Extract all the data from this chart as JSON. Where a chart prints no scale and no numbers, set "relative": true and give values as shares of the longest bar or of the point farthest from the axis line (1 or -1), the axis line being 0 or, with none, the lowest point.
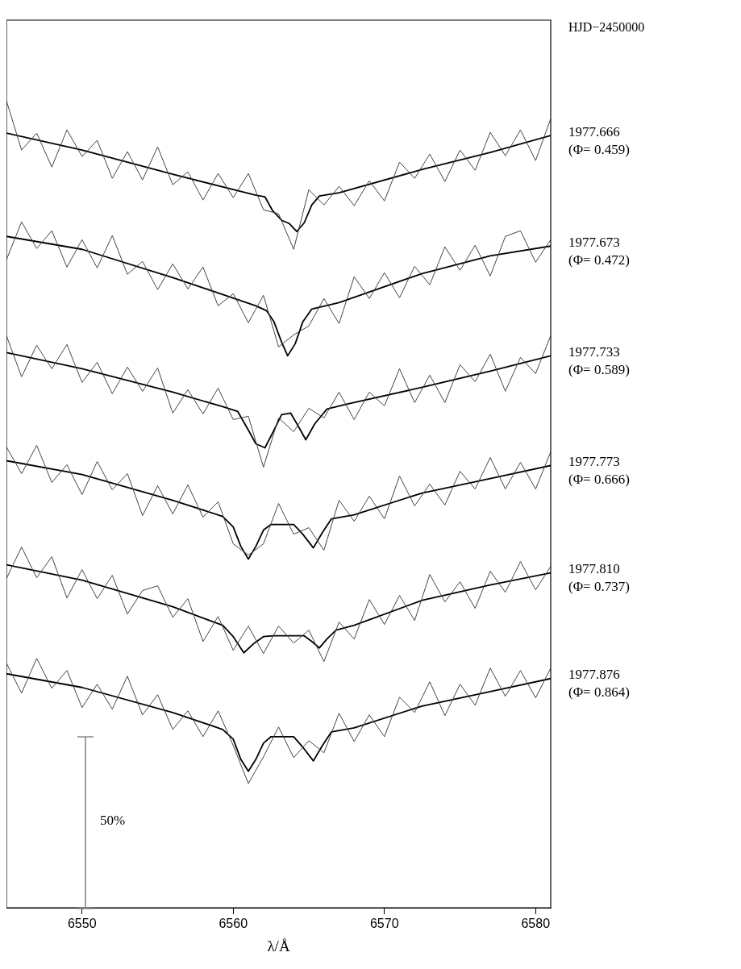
{
  "chart_data": {
    "type": "line",
    "relative": true,
    "xlabel": "λ/Å",
    "annotations": [
      "HJD−2450000",
      "50%"
    ],
    "xlim": [
      6545,
      6581
    ],
    "xticks": [
      6550,
      6560,
      6570,
      6580
    ],
    "grid": false,
    "legend": false,
    "marker": "none",
    "x": [
      6545,
      6546,
      6547,
      6548,
      6549,
      6550,
      6551,
      6552,
      6553,
      6554,
      6555,
      6556,
      6557,
      6558,
      6559,
      6560,
      6561,
      6562,
      6563,
      6564,
      6565,
      6566,
      6567,
      6568,
      6569,
      6570,
      6571,
      6572,
      6573,
      6574,
      6575,
      6576,
      6577,
      6578,
      6579,
      6580,
      6581
    ],
    "series": [
      {
        "color": "#444444",
        "values": [
          1.0,
          0.939,
          0.96,
          0.918,
          0.964,
          0.931,
          0.951,
          0.904,
          0.937,
          0.902,
          0.943,
          0.896,
          0.912,
          0.877,
          0.91,
          0.88,
          0.91,
          0.865,
          0.86,
          0.816,
          0.89,
          0.871,
          0.894,
          0.87,
          0.901,
          0.876,
          0.924,
          0.904,
          0.934,
          0.9,
          0.939,
          0.914,
          0.961,
          0.932,
          0.964,
          0.926,
          0.978
        ]
      },
      {
        "name": "1977.666 (Φ= 0.459)",
        "color": "#000000",
        "x": [
          6545,
          6550,
          6556,
          6561.5,
          6562.1,
          6562.6,
          6563.2,
          6563.7,
          6564.2,
          6564.7,
          6565.2,
          6565.7,
          6567,
          6572.5,
          6577,
          6581
        ],
        "values": [
          0.96,
          0.939,
          0.909,
          0.883,
          0.881,
          0.864,
          0.852,
          0.848,
          0.838,
          0.849,
          0.871,
          0.882,
          0.886,
          0.915,
          0.936,
          0.957
        ]
      },
      {
        "color": "#444444",
        "values": [
          0.803,
          0.85,
          0.817,
          0.839,
          0.794,
          0.828,
          0.793,
          0.833,
          0.785,
          0.801,
          0.766,
          0.798,
          0.767,
          0.794,
          0.746,
          0.761,
          0.725,
          0.759,
          0.695,
          0.71,
          0.721,
          0.755,
          0.724,
          0.782,
          0.755,
          0.787,
          0.756,
          0.795,
          0.772,
          0.819,
          0.79,
          0.821,
          0.783,
          0.832,
          0.839,
          0.8,
          0.828
        ]
      },
      {
        "name": "1977.673 (Φ= 0.472)",
        "color": "#000000",
        "x": [
          6545,
          6550,
          6556,
          6561.5,
          6562.2,
          6562.7,
          6563.2,
          6563.6,
          6564.1,
          6564.6,
          6565.2,
          6567,
          6572.5,
          6577,
          6581
        ],
        "values": [
          0.832,
          0.816,
          0.781,
          0.746,
          0.74,
          0.726,
          0.701,
          0.684,
          0.699,
          0.726,
          0.742,
          0.75,
          0.786,
          0.808,
          0.82
        ]
      },
      {
        "color": "#444444",
        "values": [
          0.709,
          0.658,
          0.697,
          0.668,
          0.698,
          0.651,
          0.676,
          0.637,
          0.67,
          0.64,
          0.669,
          0.613,
          0.642,
          0.612,
          0.644,
          0.605,
          0.609,
          0.546,
          0.607,
          0.59,
          0.619,
          0.607,
          0.639,
          0.605,
          0.639,
          0.622,
          0.668,
          0.626,
          0.66,
          0.626,
          0.673,
          0.652,
          0.686,
          0.64,
          0.682,
          0.662,
          0.709
        ]
      },
      {
        "name": "1977.733 (Φ= 0.589)",
        "color": "#000000",
        "x": [
          6545,
          6550,
          6556,
          6559.3,
          6560.3,
          6561,
          6561.5,
          6562.1,
          6562.7,
          6563.2,
          6563.8,
          6564.3,
          6564.8,
          6565.4,
          6566.2,
          6567.5,
          6572.5,
          6577,
          6581
        ],
        "values": [
          0.688,
          0.668,
          0.639,
          0.621,
          0.615,
          0.592,
          0.575,
          0.57,
          0.592,
          0.611,
          0.613,
          0.597,
          0.58,
          0.6,
          0.618,
          0.624,
          0.645,
          0.665,
          0.684
        ]
      },
      {
        "color": "#444444",
        "values": [
          0.571,
          0.538,
          0.573,
          0.527,
          0.549,
          0.512,
          0.553,
          0.518,
          0.538,
          0.486,
          0.523,
          0.488,
          0.524,
          0.484,
          0.503,
          0.451,
          0.437,
          0.451,
          0.501,
          0.463,
          0.471,
          0.443,
          0.505,
          0.479,
          0.51,
          0.482,
          0.535,
          0.498,
          0.525,
          0.499,
          0.541,
          0.519,
          0.558,
          0.519,
          0.552,
          0.519,
          0.565
        ]
      },
      {
        "name": "1977.773 (Φ= 0.666)",
        "color": "#000000",
        "x": [
          6545,
          6550,
          6556,
          6559.3,
          6560,
          6560.5,
          6561,
          6561.5,
          6562,
          6562.5,
          6564,
          6564.6,
          6565.3,
          6565.9,
          6566.5,
          6568,
          6572.5,
          6577,
          6581
        ],
        "values": [
          0.554,
          0.537,
          0.505,
          0.485,
          0.472,
          0.448,
          0.432,
          0.448,
          0.468,
          0.475,
          0.475,
          0.463,
          0.446,
          0.465,
          0.482,
          0.487,
          0.514,
          0.532,
          0.548
        ]
      },
      {
        "color": "#444444",
        "values": [
          0.408,
          0.447,
          0.409,
          0.435,
          0.384,
          0.419,
          0.383,
          0.412,
          0.364,
          0.393,
          0.399,
          0.36,
          0.383,
          0.33,
          0.361,
          0.319,
          0.349,
          0.315,
          0.349,
          0.328,
          0.344,
          0.305,
          0.354,
          0.333,
          0.382,
          0.351,
          0.387,
          0.356,
          0.413,
          0.379,
          0.404,
          0.371,
          0.417,
          0.391,
          0.429,
          0.394,
          0.423
        ]
      },
      {
        "name": "1977.810 (Φ= 0.737)",
        "color": "#000000",
        "x": [
          6545,
          6550,
          6556,
          6559.3,
          6560,
          6560.7,
          6561.4,
          6562,
          6562.7,
          6564.7,
          6565.2,
          6565.7,
          6566.2,
          6566.8,
          6568,
          6572.5,
          6577,
          6581
        ],
        "values": [
          0.425,
          0.406,
          0.373,
          0.35,
          0.336,
          0.316,
          0.328,
          0.336,
          0.337,
          0.337,
          0.33,
          0.322,
          0.333,
          0.344,
          0.35,
          0.381,
          0.4,
          0.415
        ]
      },
      {
        "color": "#444444",
        "values": [
          0.303,
          0.266,
          0.309,
          0.272,
          0.294,
          0.248,
          0.277,
          0.246,
          0.287,
          0.239,
          0.264,
          0.221,
          0.244,
          0.212,
          0.244,
          0.201,
          0.154,
          0.187,
          0.224,
          0.186,
          0.207,
          0.192,
          0.241,
          0.206,
          0.239,
          0.212,
          0.261,
          0.242,
          0.28,
          0.238,
          0.277,
          0.251,
          0.297,
          0.262,
          0.294,
          0.26,
          0.297
        ]
      },
      {
        "name": "1977.876 (Φ= 0.864)",
        "color": "#000000",
        "x": [
          6545,
          6550,
          6556,
          6559.3,
          6560,
          6560.5,
          6561,
          6561.5,
          6562,
          6562.5,
          6564,
          6564.6,
          6565.3,
          6565.9,
          6566.5,
          6568,
          6572.5,
          6577,
          6581
        ],
        "values": [
          0.29,
          0.273,
          0.242,
          0.221,
          0.209,
          0.184,
          0.169,
          0.184,
          0.204,
          0.212,
          0.212,
          0.199,
          0.182,
          0.201,
          0.218,
          0.223,
          0.25,
          0.268,
          0.284
        ]
      }
    ]
  }
}
